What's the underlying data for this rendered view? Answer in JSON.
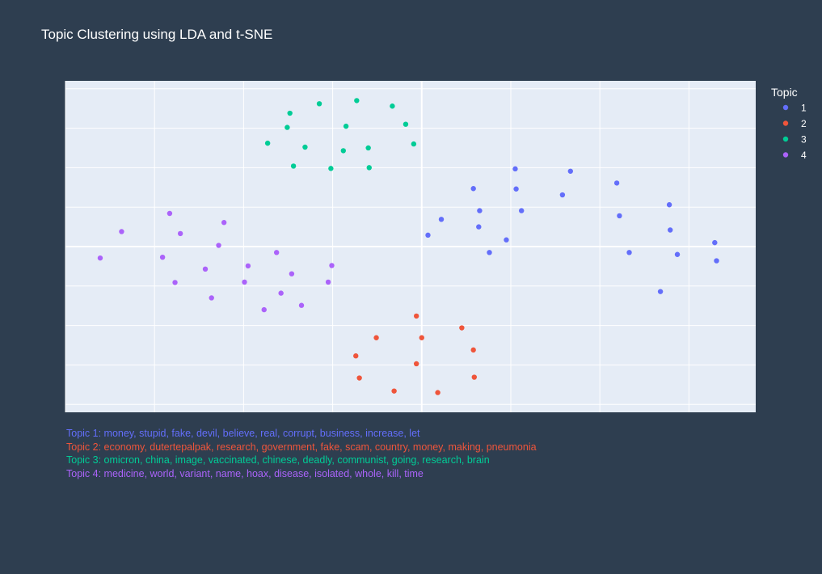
{
  "chart_data": {
    "type": "scatter",
    "title": "Topic Clustering using LDA and t-SNE",
    "xlabel": "",
    "ylabel": "",
    "xlim": [
      -40,
      37.5
    ],
    "ylim": [
      -42,
      42
    ],
    "grid": true,
    "show_tick_labels": false,
    "legend": {
      "title": "Topic",
      "placement": "top-right"
    },
    "colors": {
      "background": "#2e3e50",
      "plot_background": "#e5ecf6",
      "grid": "#ffffff"
    },
    "series": [
      {
        "name": "1",
        "color": "#636efa",
        "points": [
          {
            "x": 0.7,
            "y": 2.9
          },
          {
            "x": 2.2,
            "y": 6.9
          },
          {
            "x": 5.8,
            "y": 14.7
          },
          {
            "x": 6.4,
            "y": 5.0
          },
          {
            "x": 6.5,
            "y": 9.1
          },
          {
            "x": 7.6,
            "y": -1.5
          },
          {
            "x": 9.5,
            "y": 1.7
          },
          {
            "x": 10.5,
            "y": 19.7
          },
          {
            "x": 10.6,
            "y": 14.6
          },
          {
            "x": 11.2,
            "y": 9.1
          },
          {
            "x": 15.8,
            "y": 13.1
          },
          {
            "x": 16.7,
            "y": 19.1
          },
          {
            "x": 21.9,
            "y": 16.1
          },
          {
            "x": 22.2,
            "y": 7.8
          },
          {
            "x": 23.3,
            "y": -1.5
          },
          {
            "x": 26.8,
            "y": -11.4
          },
          {
            "x": 27.8,
            "y": 10.6
          },
          {
            "x": 27.9,
            "y": 4.2
          },
          {
            "x": 28.7,
            "y": -2.0
          },
          {
            "x": 32.9,
            "y": 1.0
          },
          {
            "x": 33.1,
            "y": -3.6
          }
        ]
      },
      {
        "name": "2",
        "color": "#ef553b",
        "points": [
          {
            "x": -7.4,
            "y": -27.7
          },
          {
            "x": -7.0,
            "y": -33.3
          },
          {
            "x": -5.1,
            "y": -23.1
          },
          {
            "x": -3.1,
            "y": -36.6
          },
          {
            "x": -0.6,
            "y": -29.7
          },
          {
            "x": -0.6,
            "y": -17.6
          },
          {
            "x": 0.0,
            "y": -23.1
          },
          {
            "x": 1.8,
            "y": -37.0
          },
          {
            "x": 4.5,
            "y": -20.6
          },
          {
            "x": 5.8,
            "y": -26.2
          },
          {
            "x": 5.9,
            "y": -33.1
          }
        ]
      },
      {
        "name": "3",
        "color": "#00cc96",
        "points": [
          {
            "x": -17.3,
            "y": 26.2
          },
          {
            "x": -15.1,
            "y": 30.2
          },
          {
            "x": -14.8,
            "y": 33.8
          },
          {
            "x": -14.4,
            "y": 20.4
          },
          {
            "x": -13.1,
            "y": 25.2
          },
          {
            "x": -11.5,
            "y": 36.2
          },
          {
            "x": -10.2,
            "y": 19.8
          },
          {
            "x": -8.8,
            "y": 24.3
          },
          {
            "x": -8.5,
            "y": 30.5
          },
          {
            "x": -7.3,
            "y": 37.0
          },
          {
            "x": -6.0,
            "y": 25.0
          },
          {
            "x": -5.9,
            "y": 20.0
          },
          {
            "x": -3.3,
            "y": 35.6
          },
          {
            "x": -1.8,
            "y": 31.0
          },
          {
            "x": -0.9,
            "y": 26.0
          }
        ]
      },
      {
        "name": "4",
        "color": "#ab63fa",
        "points": [
          {
            "x": -36.1,
            "y": -2.9
          },
          {
            "x": -33.7,
            "y": 3.8
          },
          {
            "x": -29.1,
            "y": -2.7
          },
          {
            "x": -28.3,
            "y": 8.4
          },
          {
            "x": -27.7,
            "y": -9.1
          },
          {
            "x": -27.1,
            "y": 3.3
          },
          {
            "x": -24.3,
            "y": -5.7
          },
          {
            "x": -23.6,
            "y": -13.0
          },
          {
            "x": -22.8,
            "y": 0.3
          },
          {
            "x": -22.2,
            "y": 6.1
          },
          {
            "x": -19.9,
            "y": -9.0
          },
          {
            "x": -19.5,
            "y": -4.9
          },
          {
            "x": -17.7,
            "y": -16.0
          },
          {
            "x": -16.3,
            "y": -1.5
          },
          {
            "x": -15.8,
            "y": -11.8
          },
          {
            "x": -14.6,
            "y": -6.9
          },
          {
            "x": -13.5,
            "y": -14.9
          },
          {
            "x": -10.5,
            "y": -9.0
          },
          {
            "x": -10.1,
            "y": -4.8
          }
        ]
      }
    ],
    "annotations": [
      {
        "text": "Topic 1: money, stupid, fake, devil, believe, real, corrupt, business, increase, let",
        "color": "#636efa"
      },
      {
        "text": "Topic 2: economy, dutertepalpak, research, government, fake, scam, country, money, making, pneumonia",
        "color": "#ef553b"
      },
      {
        "text": "Topic 3: omicron, china, image, vaccinated, chinese, deadly, communist, going, research, brain",
        "color": "#00cc96"
      },
      {
        "text": "Topic 4: medicine, world, variant, name, hoax, disease, isolated, whole, kill, time",
        "color": "#ab63fa"
      }
    ]
  }
}
